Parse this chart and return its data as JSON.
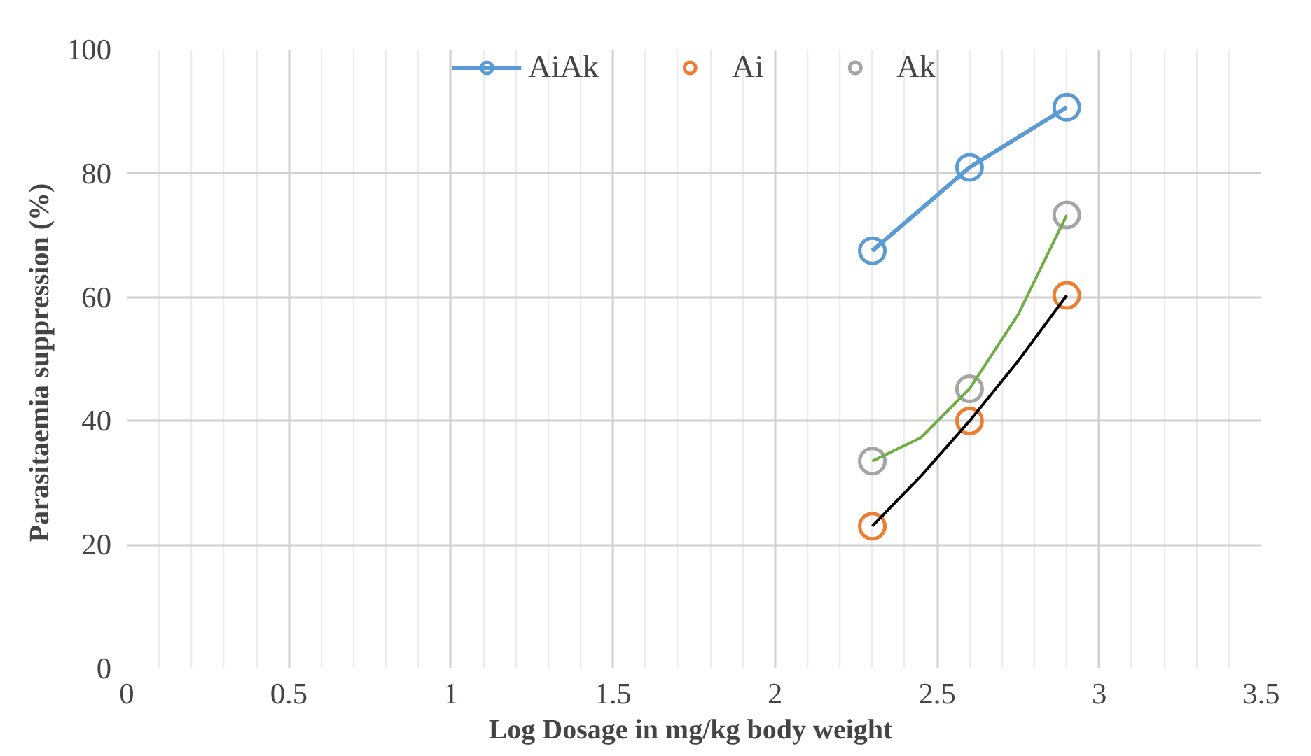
{
  "chart_data": {
    "type": "scatter",
    "xlabel": "Log Dosage in  mg/kg body weight",
    "ylabel": "Parasitaemia  suppression (%)",
    "x": [
      2.3,
      2.6,
      2.9
    ],
    "series": [
      {
        "name": "AiAk",
        "type": "line",
        "color": "#5b9bd5",
        "values": [
          67.5,
          81,
          90.7
        ]
      },
      {
        "name": "Ai",
        "color": "#ed7d31",
        "values": [
          23,
          40,
          60.3
        ]
      },
      {
        "name": "Ak",
        "color": "#a5a5a5",
        "values": [
          33.5,
          45.2,
          73.3
        ]
      },
      {
        "type": "line",
        "marker": "none",
        "color": "#000000",
        "x": [
          2.3,
          2.45,
          2.6,
          2.75,
          2.9
        ],
        "values": [
          23,
          31.1,
          40,
          49.7,
          60.3
        ]
      },
      {
        "type": "line",
        "marker": "none",
        "color": "#70ad47",
        "x": [
          2.3,
          2.45,
          2.6,
          2.75,
          2.9
        ],
        "values": [
          33.5,
          37.3,
          45.2,
          57.2,
          73.3
        ]
      }
    ],
    "marker": "circle",
    "xlim": [
      0,
      3.5
    ],
    "ylim": [
      0,
      100
    ],
    "xticks": [
      0,
      0.5,
      1,
      1.5,
      2,
      2.5,
      3,
      3.5
    ],
    "yticks": [
      0,
      20,
      40,
      60,
      80,
      100
    ],
    "grid": true,
    "legend": "top"
  }
}
